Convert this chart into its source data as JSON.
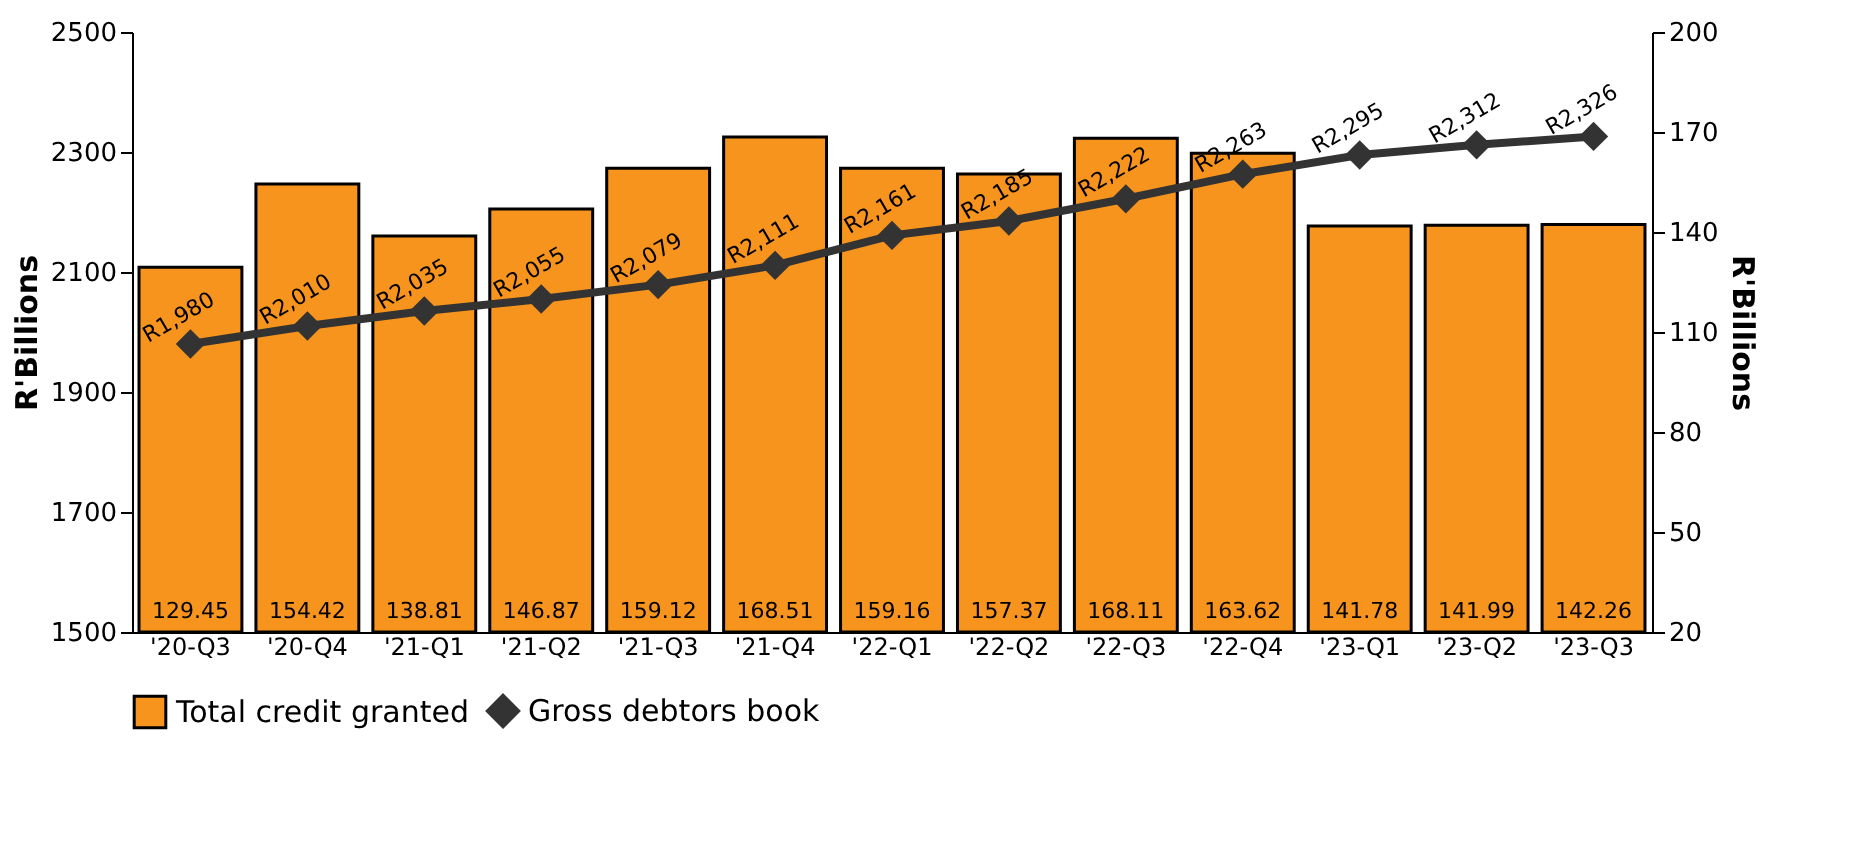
{
  "chart_data": {
    "type": "bar",
    "categories": [
      "'20-Q3",
      "'20-Q4",
      "'21-Q1",
      "'21-Q2",
      "'21-Q3",
      "'21-Q4",
      "'22-Q1",
      "'22-Q2",
      "'22-Q3",
      "'22-Q4",
      "'23-Q1",
      "'23-Q2",
      "'23-Q3"
    ],
    "series": [
      {
        "name": "Total credit granted",
        "axis": "y2",
        "color": "#f7941d",
        "values": [
          129.45,
          154.42,
          138.81,
          146.87,
          159.12,
          168.51,
          159.16,
          157.37,
          168.11,
          163.62,
          141.78,
          141.99,
          142.26
        ],
        "value_labels": [
          "129.45",
          "154.42",
          "138.81",
          "146.87",
          "159.12",
          "168.51",
          "159.16",
          "157.37",
          "168.11",
          "163.62",
          "141.78",
          "141.99",
          "142.26"
        ]
      },
      {
        "name": "Gross debtors book",
        "type": "line",
        "color": "#333333",
        "values": [
          1980,
          2010,
          2035,
          2055,
          2079,
          2111,
          2161,
          2185,
          2222,
          2263,
          2295,
          2312,
          2326
        ],
        "value_labels": [
          "R1,980",
          "R2,010",
          "R2,035",
          "R2,055",
          "R2,079",
          "R2,111",
          "R2,161",
          "R2,185",
          "R2,222",
          "R2,263",
          "R2,295",
          "R2,312",
          "R2,326"
        ]
      }
    ],
    "ylabel": "R'Billions",
    "y2label": "R'Billions",
    "ylim": [
      1500,
      2500
    ],
    "yticks": [
      1500,
      1700,
      1900,
      2100,
      2300,
      2500
    ],
    "y2lim": [
      20,
      200
    ],
    "y2ticks": [
      20,
      50,
      80,
      110,
      140,
      170,
      200
    ],
    "marker": "diamond",
    "line_style": "solid",
    "legend": "bottom",
    "grid": false
  }
}
